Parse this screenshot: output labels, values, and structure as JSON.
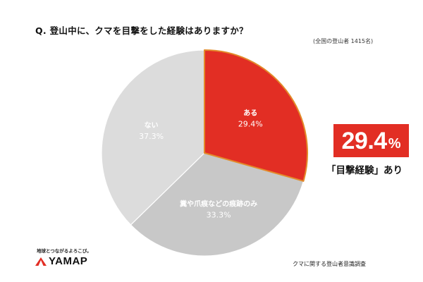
{
  "question": "Q. 登山中に、クマを目撃をした経験はありますか？",
  "respondents": "(全国の登山者 1415名)",
  "chart_data": {
    "type": "pie",
    "slices": [
      {
        "label": "ある",
        "value": 29.4,
        "value_label": "29.4%",
        "color": "#e22e24",
        "text_color": "#ffffff",
        "border": "#e38a2a"
      },
      {
        "label": "糞や爪痕などの痕跡のみ",
        "value": 33.3,
        "value_label": "33.3%",
        "color": "#c8c8c8",
        "text_color": "#ffffff",
        "border": ""
      },
      {
        "label": "ない",
        "value": 37.3,
        "value_label": "37.3%",
        "color": "#dcdcdc",
        "text_color": "#ffffff",
        "border": ""
      }
    ],
    "start": "12 o'clock, clockwise"
  },
  "highlight": {
    "number": "29.4",
    "unit": "%",
    "caption": "「目撃経験」あり",
    "color": "#e22e24"
  },
  "brand": {
    "tagline": "地球とつながるよろこび。",
    "name": "YAMAP"
  },
  "source": "クマに関する登山者意識調査"
}
